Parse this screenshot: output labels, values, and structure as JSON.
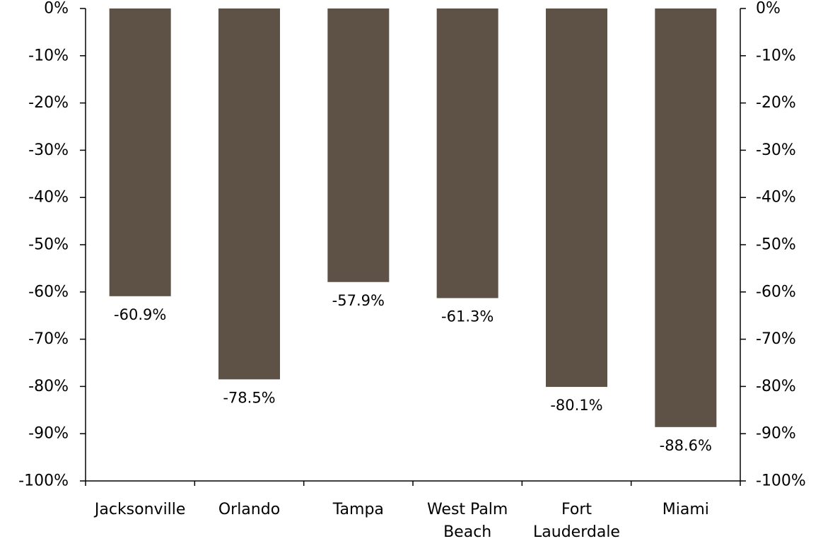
{
  "chart_data": {
    "type": "bar",
    "categories": [
      [
        "Jacksonville"
      ],
      [
        "Orlando"
      ],
      [
        "Tampa"
      ],
      [
        "West Palm",
        "Beach"
      ],
      [
        "Fort",
        "Lauderdale"
      ],
      [
        "Miami"
      ]
    ],
    "values": [
      -60.9,
      -78.5,
      -57.9,
      -61.3,
      -80.1,
      -88.6
    ],
    "data_labels": [
      "-60.9%",
      "-78.5%",
      "-57.9%",
      "-61.3%",
      "-80.1%",
      "-88.6%"
    ],
    "ylim": [
      -100,
      0
    ],
    "ytick_step": 10,
    "ytick_labels": [
      "0%",
      "-10%",
      "-20%",
      "-30%",
      "-40%",
      "-50%",
      "-60%",
      "-70%",
      "-80%",
      "-90%",
      "-100%"
    ],
    "secondary_y_axis": true,
    "grid": false,
    "legend": false,
    "bar_color": "#5e5246"
  }
}
